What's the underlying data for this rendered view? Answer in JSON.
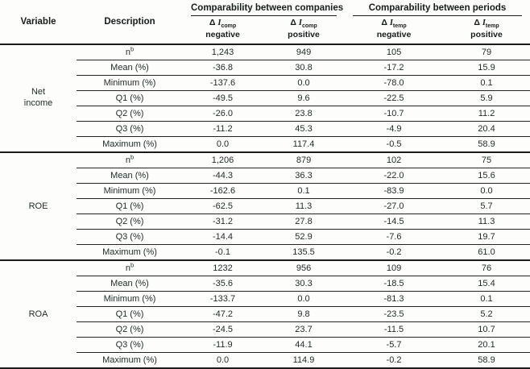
{
  "colors": {
    "text": "#212e2b",
    "rule": "#1b1b1b",
    "background": "#fdfdfc"
  },
  "table": {
    "columns": {
      "variable": "Variable",
      "description": "Description"
    },
    "groups": [
      {
        "label": "Comparability between companies"
      },
      {
        "label": "Comparability between periods"
      }
    ],
    "subheaders": [
      {
        "delta": "Δ ",
        "symbol": "I",
        "sub": "comp",
        "sign": "negative"
      },
      {
        "delta": "Δ ",
        "symbol": "I",
        "sub": "comp",
        "sign": "positive"
      },
      {
        "delta": "Δ ",
        "symbol": "I",
        "sub": "temp",
        "sign": "negative"
      },
      {
        "delta": "Δ ",
        "symbol": "I",
        "sub": "temp",
        "sign": "positive"
      }
    ],
    "sections": [
      {
        "variable": "Net income",
        "rows": [
          {
            "label": "n",
            "sup": "b",
            "values": [
              "1,243",
              "949",
              "105",
              "79"
            ]
          },
          {
            "label": "Mean (%)",
            "sup": "",
            "values": [
              "-36.8",
              "30.8",
              "-17.2",
              "15.9"
            ]
          },
          {
            "label": "Minimum (%)",
            "sup": "",
            "values": [
              "-137.6",
              "0.0",
              "-78.0",
              "0.1"
            ]
          },
          {
            "label": "Q1 (%)",
            "sup": "",
            "values": [
              "-49.5",
              "9.6",
              "-22.5",
              "5.9"
            ]
          },
          {
            "label": "Q2 (%)",
            "sup": "",
            "values": [
              "-26.0",
              "23.8",
              "-10.7",
              "11.2"
            ]
          },
          {
            "label": "Q3 (%)",
            "sup": "",
            "values": [
              "-11.2",
              "45.3",
              "-4.9",
              "20.4"
            ]
          },
          {
            "label": "Maximum (%)",
            "sup": "",
            "values": [
              "0.0",
              "117.4",
              "-0.5",
              "58.9"
            ]
          }
        ]
      },
      {
        "variable": "ROE",
        "rows": [
          {
            "label": "n",
            "sup": "b",
            "values": [
              "1,206",
              "879",
              "102",
              "75"
            ]
          },
          {
            "label": "Mean (%)",
            "sup": "",
            "values": [
              "-44.3",
              "36.3",
              "-22.0",
              "15.6"
            ]
          },
          {
            "label": "Minimum (%)",
            "sup": "",
            "values": [
              "-162.6",
              "0.1",
              "-83.9",
              "0.0"
            ]
          },
          {
            "label": "Q1 (%)",
            "sup": "",
            "values": [
              "-62.5",
              "11.3",
              "-27.0",
              "5.7"
            ]
          },
          {
            "label": "Q2 (%)",
            "sup": "",
            "values": [
              "-31.2",
              "27.8",
              "-14.5",
              "11.3"
            ]
          },
          {
            "label": "Q3 (%)",
            "sup": "",
            "values": [
              "-14.4",
              "52.9",
              "-7.6",
              "19.7"
            ]
          },
          {
            "label": "Maximum (%)",
            "sup": "",
            "values": [
              "-0.1",
              "135.5",
              "-0.2",
              "61.0"
            ]
          }
        ]
      },
      {
        "variable": "ROA",
        "rows": [
          {
            "label": "n",
            "sup": "b",
            "values": [
              "1232",
              "956",
              "109",
              "76"
            ]
          },
          {
            "label": "Mean (%)",
            "sup": "",
            "values": [
              "-35.6",
              "30.3",
              "-18.5",
              "15.4"
            ]
          },
          {
            "label": "Minimum (%)",
            "sup": "",
            "values": [
              "-133.7",
              "0.0",
              "-81.3",
              "0.1"
            ]
          },
          {
            "label": "Q1 (%)",
            "sup": "",
            "values": [
              "-47.2",
              "9.8",
              "-23.5",
              "5.2"
            ]
          },
          {
            "label": "Q2 (%)",
            "sup": "",
            "values": [
              "-24.5",
              "23.7",
              "-11.5",
              "10.7"
            ]
          },
          {
            "label": "Q3 (%)",
            "sup": "",
            "values": [
              "-11.9",
              "44.1",
              "-5.7",
              "20.1"
            ]
          },
          {
            "label": "Maximum (%)",
            "sup": "",
            "values": [
              "0.0",
              "114.9",
              "-0.2",
              "58.9"
            ]
          }
        ]
      }
    ]
  }
}
